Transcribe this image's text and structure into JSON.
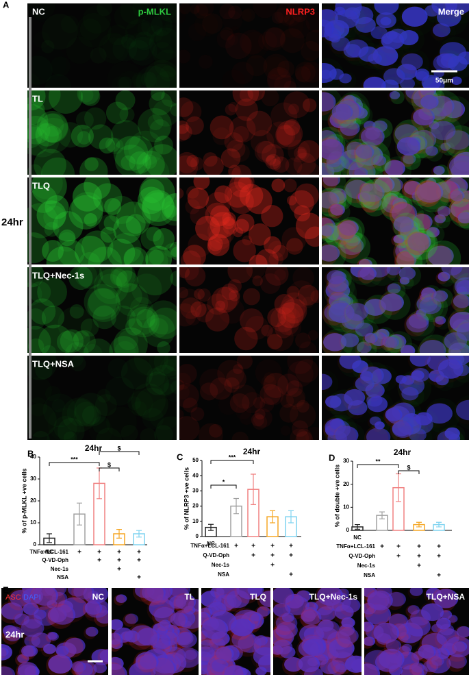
{
  "panel_a": {
    "label": "A",
    "side_label": "24hr",
    "columns": [
      "p-MLKL",
      "NLRP3",
      "Merge"
    ],
    "rows": [
      "NC",
      "TL",
      "TLQ",
      "TLQ+Nec-1s",
      "TLQ+NSA"
    ],
    "scale_bar": "50μm"
  },
  "chart_data": [
    {
      "type": "bar",
      "panel": "B",
      "title": "24hr",
      "ylabel": "% of p-MLKL +ve cells",
      "categories": [
        "NC",
        null,
        null,
        null,
        null
      ],
      "values": [
        3,
        14,
        28,
        5,
        5
      ],
      "errors": [
        2,
        5,
        7,
        2,
        1.5
      ],
      "colors": [
        "#222222",
        "#a0a0a0",
        "#f08080",
        "#f5a623",
        "#7fd3f0"
      ],
      "ylim": [
        0,
        40
      ],
      "yticks": [
        0,
        10,
        20,
        30,
        40
      ],
      "annotations": [
        "***",
        "$",
        "$"
      ],
      "treatments": [
        {
          "name": "TNFα+LCL-161",
          "marks": [
            null,
            "+",
            "+",
            "+",
            "+"
          ]
        },
        {
          "name": "Q-VD-Oph",
          "marks": [
            null,
            null,
            "+",
            "+",
            "+"
          ]
        },
        {
          "name": "Nec-1s",
          "marks": [
            null,
            null,
            null,
            "+",
            null
          ]
        },
        {
          "name": "NSA",
          "marks": [
            null,
            null,
            null,
            null,
            "+"
          ]
        }
      ]
    },
    {
      "type": "bar",
      "panel": "C",
      "title": "24hr",
      "ylabel": "% of NLRP3 +ve cells",
      "categories": [
        "NC",
        null,
        null,
        null,
        null
      ],
      "values": [
        6,
        20,
        31,
        13,
        13
      ],
      "errors": [
        2,
        5,
        10,
        4,
        4
      ],
      "colors": [
        "#222222",
        "#a0a0a0",
        "#f08080",
        "#f5a623",
        "#7fd3f0"
      ],
      "ylim": [
        0,
        50
      ],
      "yticks": [
        0,
        10,
        20,
        30,
        40,
        50
      ],
      "annotations": [
        "*",
        "***"
      ],
      "treatments": [
        {
          "name": "TNFα+LCL-161",
          "marks": [
            null,
            "+",
            "+",
            "+",
            "+"
          ]
        },
        {
          "name": "Q-VD-Oph",
          "marks": [
            null,
            null,
            "+",
            "+",
            "+"
          ]
        },
        {
          "name": "Nec-1s",
          "marks": [
            null,
            null,
            null,
            "+",
            null
          ]
        },
        {
          "name": "NSA",
          "marks": [
            null,
            null,
            null,
            null,
            "+"
          ]
        }
      ]
    },
    {
      "type": "bar",
      "panel": "D",
      "title": "24hr",
      "ylabel": "% of double +ve cells",
      "categories": [
        "NC",
        null,
        null,
        null,
        null
      ],
      "values": [
        1.5,
        6.5,
        18.5,
        2.5,
        2.5
      ],
      "errors": [
        1,
        1.5,
        6,
        1,
        1
      ],
      "colors": [
        "#222222",
        "#a0a0a0",
        "#f08080",
        "#f5a623",
        "#7fd3f0"
      ],
      "ylim": [
        0,
        30
      ],
      "yticks": [
        0,
        10,
        20,
        30
      ],
      "annotations": [
        "**",
        "$"
      ],
      "treatments": [
        {
          "name": "TNFα+LCL-161",
          "marks": [
            null,
            "+",
            "+",
            "+",
            "+"
          ]
        },
        {
          "name": "Q-VD-Oph",
          "marks": [
            null,
            null,
            "+",
            "+",
            "+"
          ]
        },
        {
          "name": "Nec-1s",
          "marks": [
            null,
            null,
            null,
            "+",
            null
          ]
        },
        {
          "name": "NSA",
          "marks": [
            null,
            null,
            null,
            null,
            "+"
          ]
        }
      ]
    }
  ],
  "panel_e": {
    "label": "E",
    "side_label": "24hr",
    "stains": [
      "ASC",
      "DAPI"
    ],
    "images": [
      "NC",
      "TL",
      "TLQ",
      "TLQ+Nec-1s",
      "TLQ+NSA"
    ]
  }
}
